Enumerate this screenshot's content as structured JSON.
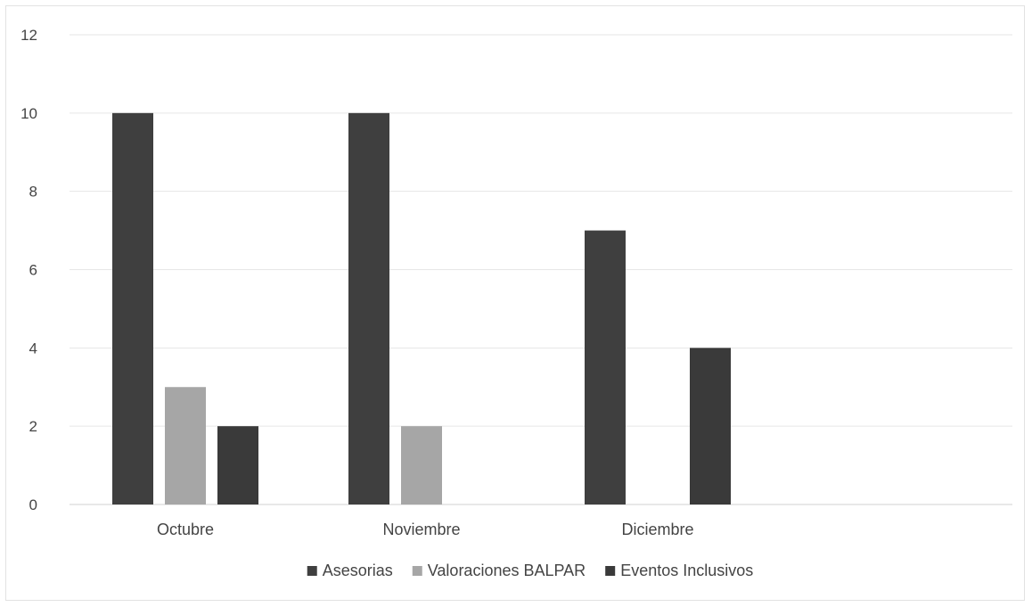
{
  "chart_data": {
    "type": "bar",
    "title": "",
    "xlabel": "",
    "ylabel": "",
    "categories": [
      "Octubre",
      "Noviembre",
      "Diciembre"
    ],
    "series": [
      {
        "name": "Asesorias",
        "values": [
          10,
          10,
          7
        ],
        "color": "#3f3f3f"
      },
      {
        "name": "Valoraciones BALPAR",
        "values": [
          3,
          2,
          0
        ],
        "color": "#a6a6a6"
      },
      {
        "name": "Eventos Inclusivos",
        "values": [
          2,
          0,
          4
        ],
        "color": "#3a3a3a"
      }
    ],
    "ylim": [
      0,
      12
    ],
    "yticks": [
      "0",
      "2",
      "4",
      "6",
      "8",
      "10",
      "12"
    ],
    "grid": true,
    "legend": "bottom"
  }
}
